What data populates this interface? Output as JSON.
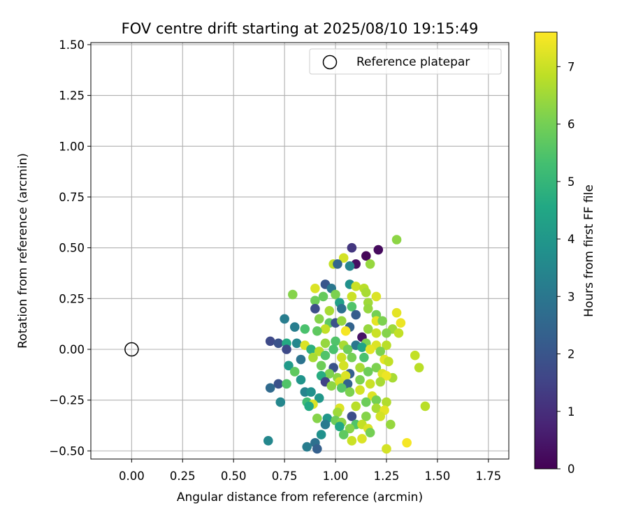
{
  "chart_data": {
    "type": "scatter",
    "title": "FOV centre drift starting at 2025/08/10 19:15:49",
    "xlabel": "Angular distance from reference (arcmin)",
    "ylabel": "Rotation from reference (arcmin)",
    "xlim": [
      -0.2,
      1.85
    ],
    "ylim": [
      -0.54,
      1.51
    ],
    "xticks": [
      0.0,
      0.25,
      0.5,
      0.75,
      1.0,
      1.25,
      1.5,
      1.75
    ],
    "xtick_labels": [
      "0.00",
      "0.25",
      "0.50",
      "0.75",
      "1.00",
      "1.25",
      "1.50",
      "1.75"
    ],
    "yticks": [
      -0.5,
      -0.25,
      0.0,
      0.25,
      0.5,
      0.75,
      1.0,
      1.25,
      1.5
    ],
    "ytick_labels": [
      "−0.50",
      "−0.25",
      "0.00",
      "0.25",
      "0.50",
      "0.75",
      "1.00",
      "1.25",
      "1.50"
    ],
    "grid": true,
    "legend": {
      "position": "top-right",
      "entries": [
        "Reference platepar"
      ]
    },
    "reference_point": {
      "x": 0.0,
      "y": 0.0
    },
    "colorbar": {
      "label": "Hours from first FF file",
      "colormap": "viridis",
      "range": [
        0,
        7.6
      ],
      "ticks": [
        0,
        1,
        2,
        3,
        4,
        5,
        6,
        7
      ],
      "tick_labels": [
        "0",
        "1",
        "2",
        "3",
        "4",
        "5",
        "6",
        "7"
      ]
    },
    "points": [
      [
        1.3,
        0.54,
        6.3
      ],
      [
        1.21,
        0.49,
        0.2
      ],
      [
        1.15,
        0.46,
        0.1
      ],
      [
        1.08,
        0.5,
        1.2
      ],
      [
        1.04,
        0.45,
        7.1
      ],
      [
        0.99,
        0.42,
        6.9
      ],
      [
        1.1,
        0.42,
        0.3
      ],
      [
        1.17,
        0.42,
        6.4
      ],
      [
        1.07,
        0.41,
        3.4
      ],
      [
        1.01,
        0.42,
        2.5
      ],
      [
        0.95,
        0.32,
        2.0
      ],
      [
        1.07,
        0.32,
        3.8
      ],
      [
        0.98,
        0.3,
        3.0
      ],
      [
        0.9,
        0.3,
        7.2
      ],
      [
        1.1,
        0.31,
        7.0
      ],
      [
        1.14,
        0.3,
        6.8
      ],
      [
        0.79,
        0.27,
        6.2
      ],
      [
        1.0,
        0.27,
        6.1
      ],
      [
        0.94,
        0.26,
        5.8
      ],
      [
        1.08,
        0.26,
        7.0
      ],
      [
        1.2,
        0.26,
        7.2
      ],
      [
        1.15,
        0.28,
        6.6
      ],
      [
        0.9,
        0.24,
        5.9
      ],
      [
        1.02,
        0.23,
        4.3
      ],
      [
        1.16,
        0.23,
        6.5
      ],
      [
        1.08,
        0.21,
        5.5
      ],
      [
        0.9,
        0.2,
        1.8
      ],
      [
        0.97,
        0.19,
        6.6
      ],
      [
        1.03,
        0.2,
        2.8
      ],
      [
        1.16,
        0.2,
        6.4
      ],
      [
        1.1,
        0.17,
        2.2
      ],
      [
        1.2,
        0.17,
        6.0
      ],
      [
        1.3,
        0.18,
        7.3
      ],
      [
        0.75,
        0.15,
        3.2
      ],
      [
        0.92,
        0.15,
        6.2
      ],
      [
        0.97,
        0.13,
        5.7
      ],
      [
        1.0,
        0.13,
        1.9
      ],
      [
        1.03,
        0.14,
        6.4
      ],
      [
        1.2,
        0.14,
        7.3
      ],
      [
        1.23,
        0.14,
        6.1
      ],
      [
        1.32,
        0.13,
        7.4
      ],
      [
        0.8,
        0.11,
        3.2
      ],
      [
        0.85,
        0.1,
        5.4
      ],
      [
        0.95,
        0.1,
        6.9
      ],
      [
        1.07,
        0.11,
        2.4
      ],
      [
        1.16,
        0.1,
        6.4
      ],
      [
        1.28,
        0.1,
        6.5
      ],
      [
        0.91,
        0.09,
        5.7
      ],
      [
        1.05,
        0.09,
        7.5
      ],
      [
        1.2,
        0.08,
        7.0
      ],
      [
        1.25,
        0.08,
        6.2
      ],
      [
        1.31,
        0.08,
        6.9
      ],
      [
        1.13,
        0.06,
        0.4
      ],
      [
        0.68,
        0.04,
        1.7
      ],
      [
        0.72,
        0.03,
        1.9
      ],
      [
        0.76,
        0.03,
        4.6
      ],
      [
        0.81,
        0.03,
        3.5
      ],
      [
        0.85,
        0.02,
        7.2
      ],
      [
        0.95,
        0.03,
        6.4
      ],
      [
        1.0,
        0.04,
        5.5
      ],
      [
        1.04,
        0.02,
        6.6
      ],
      [
        1.1,
        0.02,
        3.0
      ],
      [
        1.15,
        0.03,
        6.1
      ],
      [
        1.2,
        0.02,
        7.2
      ],
      [
        1.25,
        0.02,
        6.8
      ],
      [
        0.76,
        0.0,
        1.7
      ],
      [
        0.88,
        0.0,
        4.8
      ],
      [
        0.92,
        -0.01,
        6.8
      ],
      [
        0.99,
        0.0,
        5.4
      ],
      [
        1.06,
        0.0,
        5.9
      ],
      [
        1.13,
        0.01,
        4.4
      ],
      [
        1.17,
        0.0,
        7.3
      ],
      [
        1.22,
        -0.01,
        6.1
      ],
      [
        1.39,
        -0.03,
        6.9
      ],
      [
        0.83,
        -0.05,
        2.9
      ],
      [
        0.89,
        -0.04,
        6.6
      ],
      [
        0.95,
        -0.03,
        5.5
      ],
      [
        1.03,
        -0.04,
        7.0
      ],
      [
        1.08,
        -0.04,
        6.0
      ],
      [
        1.14,
        -0.04,
        5.4
      ],
      [
        1.24,
        -0.05,
        7.3
      ],
      [
        1.26,
        -0.06,
        6.9
      ],
      [
        0.77,
        -0.08,
        4.1
      ],
      [
        0.93,
        -0.08,
        5.9
      ],
      [
        0.99,
        -0.09,
        1.9
      ],
      [
        1.04,
        -0.08,
        7.1
      ],
      [
        1.12,
        -0.09,
        6.6
      ],
      [
        1.2,
        -0.09,
        6.1
      ],
      [
        1.41,
        -0.09,
        6.8
      ],
      [
        0.8,
        -0.11,
        5.7
      ],
      [
        0.97,
        -0.12,
        6.1
      ],
      [
        1.07,
        -0.12,
        2.3
      ],
      [
        1.16,
        -0.11,
        5.9
      ],
      [
        1.23,
        -0.12,
        7.2
      ],
      [
        1.28,
        -0.14,
        6.6
      ],
      [
        0.93,
        -0.13,
        4.7
      ],
      [
        1.01,
        -0.14,
        6.3
      ],
      [
        1.05,
        -0.13,
        7.2
      ],
      [
        1.12,
        -0.15,
        6.1
      ],
      [
        1.25,
        -0.13,
        7.4
      ],
      [
        0.83,
        -0.15,
        3.9
      ],
      [
        0.95,
        -0.16,
        1.5
      ],
      [
        1.02,
        -0.16,
        7.1
      ],
      [
        1.06,
        -0.17,
        2.4
      ],
      [
        1.17,
        -0.17,
        7.0
      ],
      [
        1.22,
        -0.16,
        6.6
      ],
      [
        0.72,
        -0.17,
        1.9
      ],
      [
        0.76,
        -0.17,
        5.5
      ],
      [
        0.68,
        -0.19,
        2.6
      ],
      [
        0.98,
        -0.18,
        6.3
      ],
      [
        1.03,
        -0.19,
        5.6
      ],
      [
        1.12,
        -0.2,
        7.1
      ],
      [
        0.85,
        -0.21,
        3.4
      ],
      [
        0.88,
        -0.21,
        3.8
      ],
      [
        1.07,
        -0.21,
        6.1
      ],
      [
        1.18,
        -0.23,
        7.2
      ],
      [
        0.92,
        -0.24,
        4.0
      ],
      [
        1.2,
        -0.25,
        6.0
      ],
      [
        1.25,
        -0.26,
        6.7
      ],
      [
        0.73,
        -0.26,
        3.5
      ],
      [
        0.86,
        -0.26,
        5.2
      ],
      [
        0.89,
        -0.27,
        7.2
      ],
      [
        1.15,
        -0.26,
        5.9
      ],
      [
        1.1,
        -0.28,
        6.8
      ],
      [
        0.87,
        -0.28,
        4.6
      ],
      [
        1.02,
        -0.29,
        7.2
      ],
      [
        1.2,
        -0.29,
        6.6
      ],
      [
        1.24,
        -0.3,
        7.3
      ],
      [
        1.44,
        -0.28,
        6.8
      ],
      [
        1.01,
        -0.31,
        6.5
      ],
      [
        1.08,
        -0.33,
        1.8
      ],
      [
        1.15,
        -0.33,
        6.2
      ],
      [
        1.22,
        -0.33,
        7.1
      ],
      [
        0.91,
        -0.34,
        6.2
      ],
      [
        0.96,
        -0.34,
        4.0
      ],
      [
        1.0,
        -0.35,
        5.9
      ],
      [
        1.03,
        -0.36,
        6.3
      ],
      [
        1.1,
        -0.37,
        5.5
      ],
      [
        1.13,
        -0.37,
        6.9
      ],
      [
        1.16,
        -0.39,
        7.2
      ],
      [
        1.27,
        -0.37,
        6.4
      ],
      [
        0.95,
        -0.37,
        3.1
      ],
      [
        1.02,
        -0.38,
        4.5
      ],
      [
        1.07,
        -0.39,
        6.2
      ],
      [
        1.17,
        -0.41,
        6.0
      ],
      [
        0.93,
        -0.42,
        3.8
      ],
      [
        1.04,
        -0.42,
        5.7
      ],
      [
        1.13,
        -0.44,
        7.2
      ],
      [
        1.08,
        -0.45,
        7.0
      ],
      [
        0.67,
        -0.45,
        3.5
      ],
      [
        0.9,
        -0.46,
        2.8
      ],
      [
        0.86,
        -0.48,
        3.2
      ],
      [
        0.91,
        -0.49,
        2.3
      ],
      [
        1.25,
        -0.49,
        7.1
      ],
      [
        1.35,
        -0.46,
        7.5
      ]
    ]
  }
}
